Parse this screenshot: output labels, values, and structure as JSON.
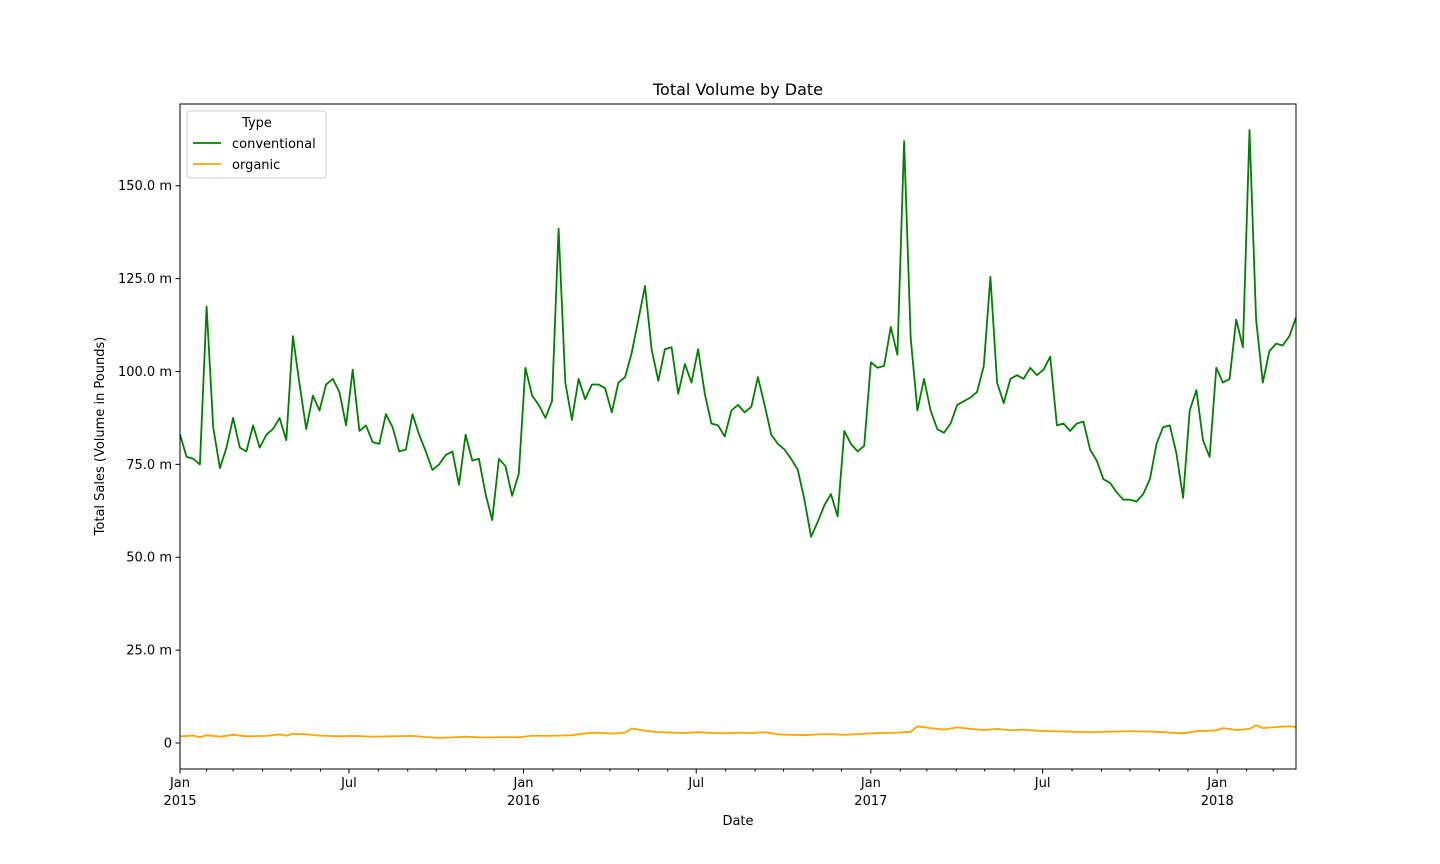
{
  "chart_data": {
    "type": "line",
    "title": "Total Volume by Date",
    "xlabel": "Date",
    "ylabel": "Total Sales (Volume in Pounds)",
    "ylim": [
      -7,
      172
    ],
    "xlim": [
      "2015-01-04",
      "2018-03-25"
    ],
    "y_ticks": [
      {
        "value": 0,
        "label": "0"
      },
      {
        "value": 25,
        "label": "25.0 m"
      },
      {
        "value": 50,
        "label": "50.0 m"
      },
      {
        "value": 75,
        "label": "75.0 m"
      },
      {
        "value": 100,
        "label": "100.0 m"
      },
      {
        "value": 125,
        "label": "125.0 m"
      },
      {
        "value": 150,
        "label": "150.0 m"
      }
    ],
    "x_major_ticks": [
      {
        "date": "2015-01-01",
        "label": "Jan",
        "sublabel": "2015"
      },
      {
        "date": "2015-07-01",
        "label": "Jul",
        "sublabel": ""
      },
      {
        "date": "2016-01-01",
        "label": "Jan",
        "sublabel": "2016"
      },
      {
        "date": "2016-07-01",
        "label": "Jul",
        "sublabel": ""
      },
      {
        "date": "2017-01-01",
        "label": "Jan",
        "sublabel": "2017"
      },
      {
        "date": "2017-07-01",
        "label": "Jul",
        "sublabel": ""
      },
      {
        "date": "2018-01-01",
        "label": "Jan",
        "sublabel": "2018"
      }
    ],
    "x_minor_ticks": [
      "2015-02-01",
      "2015-03-01",
      "2015-04-01",
      "2015-05-01",
      "2015-06-01",
      "2015-08-01",
      "2015-09-01",
      "2015-10-01",
      "2015-11-01",
      "2015-12-01",
      "2016-02-01",
      "2016-03-01",
      "2016-04-01",
      "2016-05-01",
      "2016-06-01",
      "2016-08-01",
      "2016-09-01",
      "2016-10-01",
      "2016-11-01",
      "2016-12-01",
      "2017-02-01",
      "2017-03-01",
      "2017-04-01",
      "2017-05-01",
      "2017-06-01",
      "2017-08-01",
      "2017-09-01",
      "2017-10-01",
      "2017-11-01",
      "2017-12-01",
      "2018-02-01",
      "2018-03-01"
    ],
    "legend": {
      "title": "Type",
      "placement": "top-left"
    },
    "grid": false,
    "series": [
      {
        "name": "conventional",
        "color": "#008000",
        "points": [
          [
            "2015-01-04",
            83
          ],
          [
            "2015-01-11",
            77
          ],
          [
            "2015-01-18",
            76.5
          ],
          [
            "2015-01-25",
            75
          ],
          [
            "2015-02-01",
            117.5
          ],
          [
            "2015-02-08",
            85
          ],
          [
            "2015-02-15",
            74
          ],
          [
            "2015-02-22",
            79.5
          ],
          [
            "2015-03-01",
            87.5
          ],
          [
            "2015-03-08",
            79.5
          ],
          [
            "2015-03-15",
            78.5
          ],
          [
            "2015-03-22",
            85.5
          ],
          [
            "2015-03-29",
            79.5
          ],
          [
            "2015-04-05",
            83
          ],
          [
            "2015-04-12",
            84.5
          ],
          [
            "2015-04-19",
            87.5
          ],
          [
            "2015-04-26",
            81.5
          ],
          [
            "2015-05-03",
            109.5
          ],
          [
            "2015-05-10",
            96.5
          ],
          [
            "2015-05-17",
            84.5
          ],
          [
            "2015-05-24",
            93.5
          ],
          [
            "2015-05-31",
            89.5
          ],
          [
            "2015-06-07",
            96.5
          ],
          [
            "2015-06-14",
            98
          ],
          [
            "2015-06-21",
            94.5
          ],
          [
            "2015-06-28",
            85.5
          ],
          [
            "2015-07-05",
            100.5
          ],
          [
            "2015-07-12",
            84
          ],
          [
            "2015-07-19",
            85.5
          ],
          [
            "2015-07-26",
            81
          ],
          [
            "2015-08-02",
            80.5
          ],
          [
            "2015-08-09",
            88.5
          ],
          [
            "2015-08-16",
            85
          ],
          [
            "2015-08-23",
            78.5
          ],
          [
            "2015-08-30",
            79
          ],
          [
            "2015-09-06",
            88.5
          ],
          [
            "2015-09-13",
            83
          ],
          [
            "2015-09-20",
            78.5
          ],
          [
            "2015-09-27",
            73.5
          ],
          [
            "2015-10-04",
            75
          ],
          [
            "2015-10-11",
            77.5
          ],
          [
            "2015-10-18",
            78.5
          ],
          [
            "2015-10-25",
            69.5
          ],
          [
            "2015-11-01",
            83
          ],
          [
            "2015-11-08",
            76
          ],
          [
            "2015-11-15",
            76.5
          ],
          [
            "2015-11-22",
            67
          ],
          [
            "2015-11-29",
            60
          ],
          [
            "2015-12-06",
            76.5
          ],
          [
            "2015-12-13",
            74.5
          ],
          [
            "2015-12-20",
            66.5
          ],
          [
            "2015-12-27",
            72.5
          ],
          [
            "2016-01-03",
            101
          ],
          [
            "2016-01-10",
            93.5
          ],
          [
            "2016-01-17",
            91
          ],
          [
            "2016-01-24",
            87.5
          ],
          [
            "2016-01-31",
            92
          ],
          [
            "2016-02-07",
            138.5
          ],
          [
            "2016-02-14",
            97
          ],
          [
            "2016-02-21",
            87
          ],
          [
            "2016-02-28",
            98
          ],
          [
            "2016-03-06",
            92.5
          ],
          [
            "2016-03-13",
            96.5
          ],
          [
            "2016-03-20",
            96.5
          ],
          [
            "2016-03-27",
            95.5
          ],
          [
            "2016-04-03",
            89
          ],
          [
            "2016-04-10",
            97
          ],
          [
            "2016-04-17",
            98.5
          ],
          [
            "2016-04-24",
            105
          ],
          [
            "2016-05-01",
            114
          ],
          [
            "2016-05-08",
            123
          ],
          [
            "2016-05-15",
            106
          ],
          [
            "2016-05-22",
            97.5
          ],
          [
            "2016-05-29",
            106
          ],
          [
            "2016-06-05",
            106.5
          ],
          [
            "2016-06-12",
            94
          ],
          [
            "2016-06-19",
            102
          ],
          [
            "2016-06-26",
            97
          ],
          [
            "2016-07-03",
            106
          ],
          [
            "2016-07-10",
            94
          ],
          [
            "2016-07-17",
            86
          ],
          [
            "2016-07-24",
            85.5
          ],
          [
            "2016-07-31",
            82.5
          ],
          [
            "2016-08-07",
            89.5
          ],
          [
            "2016-08-14",
            91
          ],
          [
            "2016-08-21",
            89
          ],
          [
            "2016-08-28",
            90.5
          ],
          [
            "2016-09-04",
            98.5
          ],
          [
            "2016-09-11",
            91
          ],
          [
            "2016-09-18",
            83
          ],
          [
            "2016-09-25",
            80.5
          ],
          [
            "2016-10-02",
            79
          ],
          [
            "2016-10-09",
            76.5
          ],
          [
            "2016-10-16",
            73.5
          ],
          [
            "2016-10-23",
            65.5
          ],
          [
            "2016-10-30",
            55.5
          ],
          [
            "2016-11-06",
            59.5
          ],
          [
            "2016-11-13",
            64
          ],
          [
            "2016-11-20",
            67
          ],
          [
            "2016-11-27",
            61
          ],
          [
            "2016-12-04",
            84
          ],
          [
            "2016-12-11",
            80.5
          ],
          [
            "2016-12-18",
            78.5
          ],
          [
            "2016-12-25",
            80
          ],
          [
            "2017-01-01",
            102.5
          ],
          [
            "2017-01-08",
            101
          ],
          [
            "2017-01-15",
            101.5
          ],
          [
            "2017-01-22",
            112
          ],
          [
            "2017-01-29",
            104.5
          ],
          [
            "2017-02-05",
            162
          ],
          [
            "2017-02-12",
            109
          ],
          [
            "2017-02-19",
            89.5
          ],
          [
            "2017-02-26",
            98
          ],
          [
            "2017-03-05",
            89.5
          ],
          [
            "2017-03-12",
            84.5
          ],
          [
            "2017-03-19",
            83.5
          ],
          [
            "2017-03-26",
            86
          ],
          [
            "2017-04-02",
            91
          ],
          [
            "2017-04-09",
            92
          ],
          [
            "2017-04-16",
            93
          ],
          [
            "2017-04-23",
            94.5
          ],
          [
            "2017-04-30",
            101.5
          ],
          [
            "2017-05-07",
            125.5
          ],
          [
            "2017-05-14",
            97
          ],
          [
            "2017-05-21",
            91.5
          ],
          [
            "2017-05-28",
            98
          ],
          [
            "2017-06-04",
            99
          ],
          [
            "2017-06-11",
            98
          ],
          [
            "2017-06-18",
            101
          ],
          [
            "2017-06-25",
            99
          ],
          [
            "2017-07-02",
            100.5
          ],
          [
            "2017-07-09",
            104
          ],
          [
            "2017-07-16",
            85.5
          ],
          [
            "2017-07-23",
            86
          ],
          [
            "2017-07-30",
            84
          ],
          [
            "2017-08-06",
            86
          ],
          [
            "2017-08-13",
            86.5
          ],
          [
            "2017-08-20",
            79
          ],
          [
            "2017-08-27",
            76
          ],
          [
            "2017-09-03",
            71
          ],
          [
            "2017-09-10",
            70
          ],
          [
            "2017-09-17",
            67.5
          ],
          [
            "2017-09-24",
            65.5
          ],
          [
            "2017-10-01",
            65.5
          ],
          [
            "2017-10-08",
            65
          ],
          [
            "2017-10-15",
            67
          ],
          [
            "2017-10-22",
            71
          ],
          [
            "2017-10-29",
            80.5
          ],
          [
            "2017-11-05",
            85
          ],
          [
            "2017-11-12",
            85.5
          ],
          [
            "2017-11-19",
            78
          ],
          [
            "2017-11-26",
            66
          ],
          [
            "2017-12-03",
            89.5
          ],
          [
            "2017-12-10",
            95
          ],
          [
            "2017-12-17",
            81.5
          ],
          [
            "2017-12-24",
            77
          ],
          [
            "2017-12-31",
            101
          ],
          [
            "2018-01-07",
            97
          ],
          [
            "2018-01-14",
            98
          ],
          [
            "2018-01-21",
            114
          ],
          [
            "2018-01-28",
            106.5
          ],
          [
            "2018-02-04",
            165
          ],
          [
            "2018-02-11",
            114
          ],
          [
            "2018-02-18",
            97
          ],
          [
            "2018-02-25",
            105.5
          ],
          [
            "2018-03-04",
            107.5
          ],
          [
            "2018-03-11",
            107
          ],
          [
            "2018-03-18",
            109.5
          ],
          [
            "2018-03-25",
            114.5
          ]
        ]
      },
      {
        "name": "organic",
        "color": "#ffa500",
        "points": [
          [
            "2015-01-04",
            1.8
          ],
          [
            "2015-01-18",
            2.0
          ],
          [
            "2015-01-25",
            1.6
          ],
          [
            "2015-02-01",
            2.1
          ],
          [
            "2015-02-15",
            1.7
          ],
          [
            "2015-03-01",
            2.2
          ],
          [
            "2015-03-15",
            1.8
          ],
          [
            "2015-04-05",
            1.9
          ],
          [
            "2015-04-19",
            2.3
          ],
          [
            "2015-04-26",
            2.0
          ],
          [
            "2015-05-03",
            2.5
          ],
          [
            "2015-05-17",
            2.3
          ],
          [
            "2015-05-31",
            2.0
          ],
          [
            "2015-06-21",
            1.8
          ],
          [
            "2015-07-05",
            1.9
          ],
          [
            "2015-07-26",
            1.7
          ],
          [
            "2015-08-16",
            1.8
          ],
          [
            "2015-09-06",
            1.9
          ],
          [
            "2015-09-20",
            1.6
          ],
          [
            "2015-10-04",
            1.4
          ],
          [
            "2015-10-18",
            1.5
          ],
          [
            "2015-11-01",
            1.7
          ],
          [
            "2015-11-15",
            1.5
          ],
          [
            "2015-11-29",
            1.5
          ],
          [
            "2015-12-13",
            1.6
          ],
          [
            "2015-12-27",
            1.5
          ],
          [
            "2016-01-10",
            2.0
          ],
          [
            "2016-01-24",
            1.9
          ],
          [
            "2016-02-07",
            2.0
          ],
          [
            "2016-02-21",
            2.1
          ],
          [
            "2016-03-06",
            2.6
          ],
          [
            "2016-03-20",
            2.8
          ],
          [
            "2016-04-03",
            2.5
          ],
          [
            "2016-04-17",
            2.8
          ],
          [
            "2016-04-24",
            3.9
          ],
          [
            "2016-05-08",
            3.3
          ],
          [
            "2016-05-22",
            2.9
          ],
          [
            "2016-06-05",
            2.8
          ],
          [
            "2016-06-19",
            2.7
          ],
          [
            "2016-07-03",
            2.9
          ],
          [
            "2016-07-17",
            2.7
          ],
          [
            "2016-07-31",
            2.6
          ],
          [
            "2016-08-14",
            2.8
          ],
          [
            "2016-08-28",
            2.7
          ],
          [
            "2016-09-11",
            2.9
          ],
          [
            "2016-09-25",
            2.3
          ],
          [
            "2016-10-09",
            2.2
          ],
          [
            "2016-10-23",
            2.1
          ],
          [
            "2016-11-06",
            2.3
          ],
          [
            "2016-11-20",
            2.4
          ],
          [
            "2016-12-04",
            2.2
          ],
          [
            "2016-12-18",
            2.4
          ],
          [
            "2017-01-01",
            2.6
          ],
          [
            "2017-01-15",
            2.7
          ],
          [
            "2017-01-29",
            2.8
          ],
          [
            "2017-02-12",
            3.0
          ],
          [
            "2017-02-19",
            4.5
          ],
          [
            "2017-03-05",
            4.0
          ],
          [
            "2017-03-19",
            3.6
          ],
          [
            "2017-04-02",
            4.2
          ],
          [
            "2017-04-16",
            3.8
          ],
          [
            "2017-04-30",
            3.5
          ],
          [
            "2017-05-14",
            3.8
          ],
          [
            "2017-05-28",
            3.4
          ],
          [
            "2017-06-11",
            3.6
          ],
          [
            "2017-06-25",
            3.3
          ],
          [
            "2017-07-09",
            3.2
          ],
          [
            "2017-07-23",
            3.1
          ],
          [
            "2017-08-06",
            3.0
          ],
          [
            "2017-08-20",
            2.9
          ],
          [
            "2017-09-03",
            3.0
          ],
          [
            "2017-09-17",
            3.1
          ],
          [
            "2017-10-01",
            3.2
          ],
          [
            "2017-10-15",
            3.1
          ],
          [
            "2017-10-29",
            3.0
          ],
          [
            "2017-11-12",
            2.8
          ],
          [
            "2017-11-26",
            2.6
          ],
          [
            "2017-12-10",
            3.2
          ],
          [
            "2017-12-24",
            3.3
          ],
          [
            "2017-12-31",
            3.4
          ],
          [
            "2018-01-07",
            4.0
          ],
          [
            "2018-01-21",
            3.5
          ],
          [
            "2018-02-04",
            3.8
          ],
          [
            "2018-02-11",
            4.8
          ],
          [
            "2018-02-18",
            4.0
          ],
          [
            "2018-03-04",
            4.3
          ],
          [
            "2018-03-18",
            4.5
          ],
          [
            "2018-03-25",
            4.3
          ]
        ]
      }
    ]
  }
}
